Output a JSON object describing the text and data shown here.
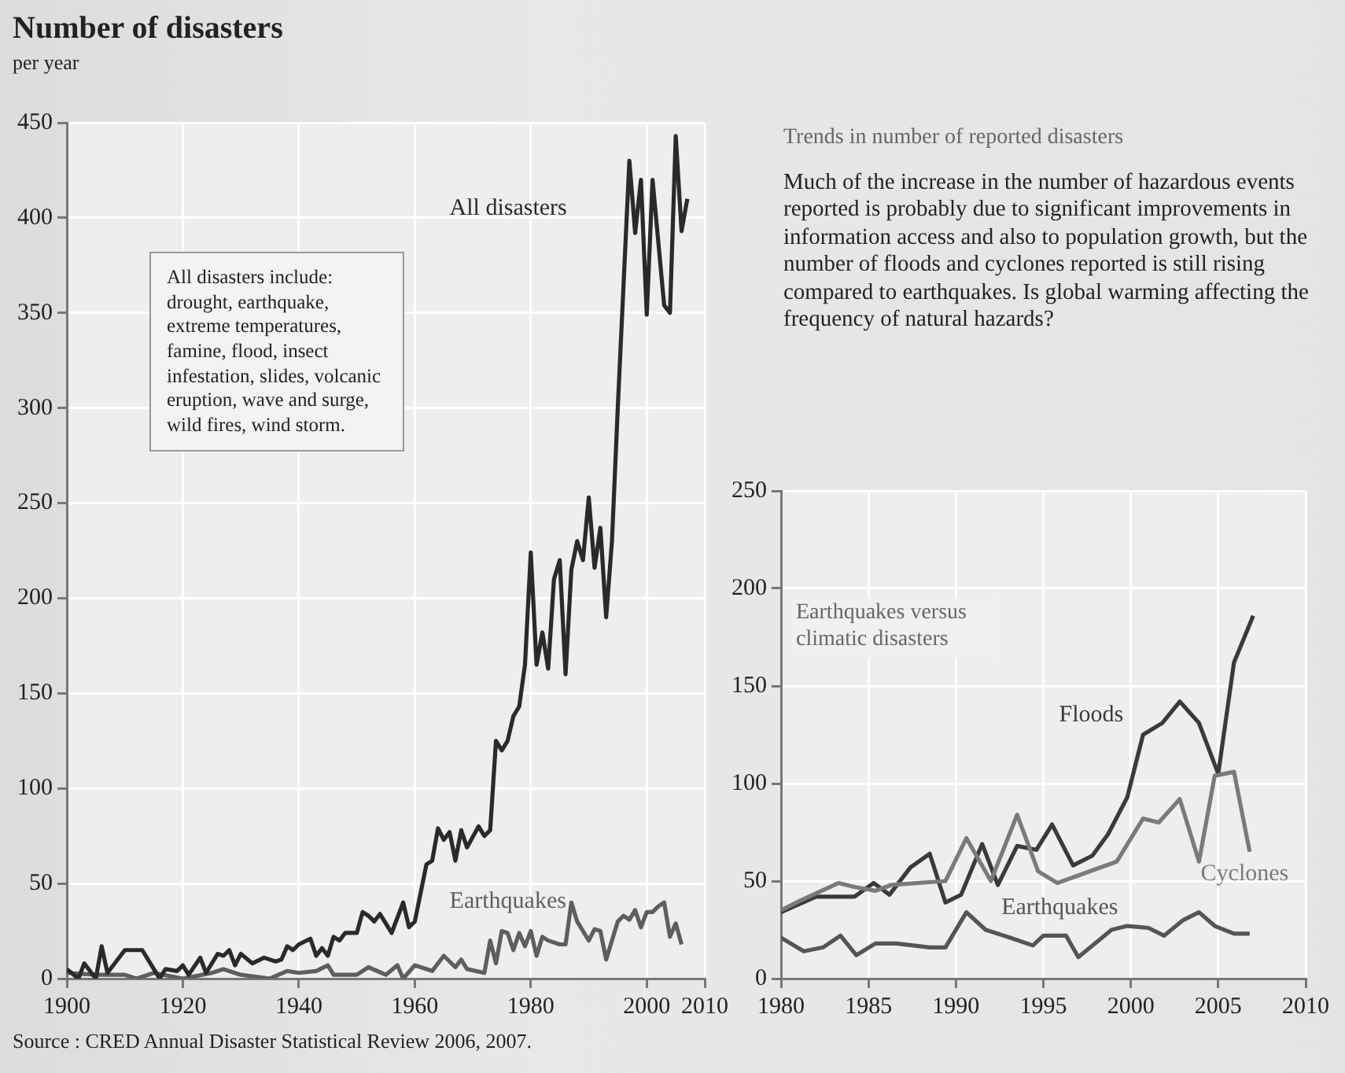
{
  "chart_data": [
    {
      "type": "line",
      "title": "Number of disasters",
      "subtitle": "per year",
      "annotations": [
        "All disasters include: drought, earthquake, extreme temperatures, famine, flood, insect infestation, slides, volcanic eruption, wave and surge, wild fires, wind storm.",
        "Source : CRED Annual Disaster Statistical Review 2006, 2007."
      ],
      "series": [
        {
          "name": "All disasters",
          "color": "#2a2a2a",
          "x": [
            1900,
            1902,
            1903,
            1905,
            1906,
            1907,
            1910,
            1913,
            1915,
            1916,
            1917,
            1919,
            1920,
            1921,
            1923,
            1924,
            1926,
            1927,
            1928,
            1929,
            1930,
            1932,
            1934,
            1936,
            1937,
            1938,
            1939,
            1940,
            1942,
            1943,
            1944,
            1945,
            1946,
            1947,
            1948,
            1950,
            1951,
            1952,
            1953,
            1954,
            1956,
            1958,
            1959,
            1960,
            1961,
            1962,
            1963,
            1964,
            1965,
            1966,
            1967,
            1968,
            1969,
            1971,
            1972,
            1973,
            1974,
            1975,
            1976,
            1977,
            1978,
            1979,
            1980,
            1981,
            1982,
            1983,
            1984,
            1985,
            1986,
            1987,
            1988,
            1989,
            1990,
            1991,
            1992,
            1993,
            1994,
            1995,
            1996,
            1997,
            1998,
            1999,
            2000,
            2001,
            2003,
            2004,
            2005,
            2006,
            2007
          ],
          "values": [
            5,
            0,
            8,
            0,
            17,
            3,
            15,
            15,
            5,
            0,
            5,
            4,
            7,
            2,
            11,
            3,
            13,
            12,
            15,
            7,
            13,
            8,
            11,
            9,
            10,
            17,
            15,
            18,
            21,
            12,
            16,
            12,
            22,
            20,
            24,
            24,
            35,
            33,
            30,
            34,
            24,
            40,
            27,
            30,
            45,
            60,
            62,
            79,
            73,
            77,
            62,
            78,
            69,
            80,
            75,
            78,
            125,
            120,
            125,
            138,
            143,
            165,
            224,
            165,
            182,
            163,
            210,
            220,
            160,
            215,
            230,
            220,
            253,
            216,
            237,
            190,
            230,
            300,
            365,
            430,
            392,
            420,
            349,
            420,
            354,
            350,
            443,
            393,
            410
          ]
        },
        {
          "name": "Earthquakes",
          "color": "#5e5e5e",
          "x": [
            1900,
            1905,
            1910,
            1912,
            1915,
            1920,
            1925,
            1927,
            1930,
            1935,
            1938,
            1940,
            1943,
            1945,
            1946,
            1950,
            1952,
            1955,
            1957,
            1958,
            1960,
            1963,
            1965,
            1967,
            1968,
            1969,
            1972,
            1973,
            1974,
            1975,
            1976,
            1977,
            1978,
            1979,
            1980,
            1981,
            1982,
            1983,
            1985,
            1986,
            1987,
            1988,
            1990,
            1991,
            1992,
            1993,
            1995,
            1996,
            1997,
            1998,
            1999,
            2000,
            2001,
            2002,
            2003,
            2004,
            2005,
            2006
          ],
          "values": [
            3,
            2,
            2,
            0,
            3,
            0,
            3,
            5,
            2,
            0,
            4,
            3,
            4,
            7,
            2,
            2,
            6,
            2,
            7,
            0,
            7,
            4,
            12,
            6,
            10,
            5,
            3,
            20,
            8,
            25,
            24,
            15,
            24,
            17,
            25,
            12,
            22,
            20,
            18,
            18,
            40,
            30,
            20,
            26,
            25,
            10,
            30,
            33,
            31,
            36,
            27,
            35,
            35,
            38,
            40,
            22,
            29,
            18
          ]
        }
      ],
      "xlim": [
        1900,
        2010
      ],
      "xticks": [
        1900,
        1920,
        1940,
        1960,
        1980,
        2000,
        2010
      ],
      "ylim": [
        0,
        450
      ],
      "yticks": [
        0,
        50,
        100,
        150,
        200,
        250,
        300,
        350,
        400,
        450
      ],
      "grid": true
    },
    {
      "type": "line",
      "title": "Trends in number of reported disasters",
      "subtitle": "Much of the increase in the number of hazardous events reported is probably due to significant improvements in information access and also to population growth, but the number of floods and cyclones reported is still rising compared to earthquakes. Is global warming affecting the frequency of natural hazards?",
      "annotations": [
        "Earthquakes versus climatic disasters"
      ],
      "series": [
        {
          "name": "Cyclones",
          "color": "#7a7a7a",
          "x": [
            1980,
            1981.1,
            1983.3,
            1984.2,
            1985.4,
            1986.3,
            1989.4,
            1990.6,
            1992,
            1993.5,
            1994.7,
            1995.8,
            1999.2,
            2000.7,
            2001.6,
            2002.8,
            2003.9,
            2004.8,
            2005.9,
            2006.8
          ],
          "values": [
            35,
            40,
            49,
            47,
            45,
            48,
            50,
            72,
            50,
            84,
            55,
            49,
            60,
            82,
            80,
            92,
            60,
            104,
            106,
            65
          ]
        },
        {
          "name": "Floods",
          "color": "#3a3a3a",
          "x": [
            1980,
            1982,
            1984.2,
            1985.3,
            1986.2,
            1987.4,
            1988.5,
            1989.4,
            1990.3,
            1991.5,
            1992.4,
            1993.5,
            1994.6,
            1995.5,
            1996.7,
            1997.8,
            1998.7,
            1999.8,
            2000.7,
            2001.8,
            2002.8,
            2003.9,
            2005,
            2005.9,
            2007
          ],
          "values": [
            34,
            42,
            42,
            49,
            43,
            57,
            64,
            39,
            43,
            69,
            48,
            68,
            66,
            79,
            58,
            63,
            74,
            93,
            125,
            131,
            142,
            131,
            105,
            162,
            186
          ]
        },
        {
          "name": "Earthquakes",
          "color": "#555555",
          "x": [
            1980,
            1981.3,
            1982.4,
            1983.4,
            1984.3,
            1985.4,
            1986.6,
            1988.5,
            1989.4,
            1990.6,
            1991.7,
            1993.1,
            1994.4,
            1995,
            1996.3,
            1997,
            1998.9,
            1999.8,
            2001,
            2001.9,
            2003,
            2003.9,
            2004.8,
            2005.9,
            2006.8
          ],
          "values": [
            21,
            14,
            16,
            22,
            12,
            18,
            18,
            16,
            16,
            34,
            25,
            21,
            17,
            22,
            22,
            11,
            25,
            27,
            26,
            22,
            30,
            34,
            27,
            23,
            23
          ]
        }
      ],
      "xlim": [
        1980,
        2010
      ],
      "xticks": [
        1980,
        1985,
        1990,
        1995,
        2000,
        2005,
        2010
      ],
      "ylim": [
        0,
        250
      ],
      "yticks": [
        0,
        50,
        100,
        150,
        200,
        250
      ],
      "grid": true
    }
  ]
}
